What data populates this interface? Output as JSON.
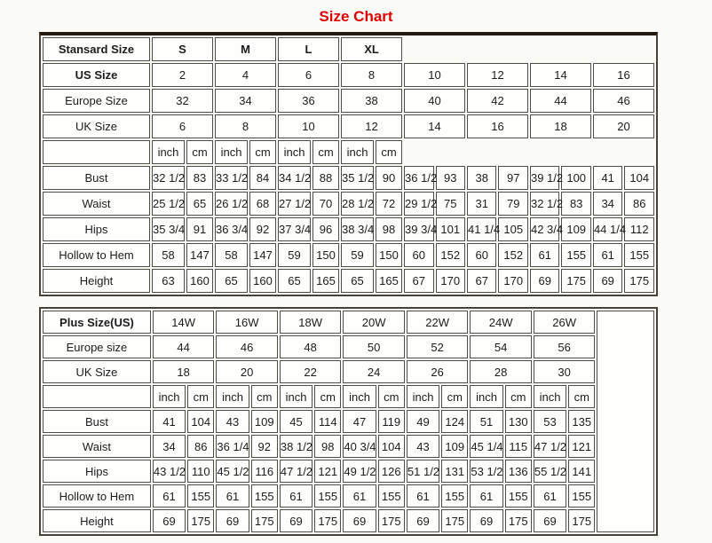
{
  "title": "Size Chart",
  "colors": {
    "title": "#e10000",
    "cell_border": "#4f4b45",
    "table_top_bar": "#241b10",
    "cell_background": "#fefefc",
    "page_background": "#fbfbf8"
  },
  "standard_table": {
    "corner_label": "Stansard Size",
    "groups": [
      "S",
      "M",
      "L",
      "XL"
    ],
    "size_rows": [
      {
        "label": "US Size",
        "values": [
          "2",
          "4",
          "6",
          "8",
          "10",
          "12",
          "14",
          "16"
        ]
      },
      {
        "label": "Europe Size",
        "values": [
          "32",
          "34",
          "36",
          "38",
          "40",
          "42",
          "44",
          "46"
        ]
      },
      {
        "label": "UK Size",
        "values": [
          "6",
          "8",
          "10",
          "12",
          "14",
          "16",
          "18",
          "20"
        ]
      }
    ],
    "unit_labels": [
      "inch",
      "cm"
    ],
    "measure_rows": [
      {
        "label": "Bust",
        "values": [
          "32 1/2",
          "83",
          "33 1/2",
          "84",
          "34 1/2",
          "88",
          "35 1/2",
          "90",
          "36 1/2",
          "93",
          "38",
          "97",
          "39 1/2",
          "100",
          "41",
          "104"
        ]
      },
      {
        "label": "Waist",
        "values": [
          "25 1/2",
          "65",
          "26 1/2",
          "68",
          "27 1/2",
          "70",
          "28 1/2",
          "72",
          "29 1/2",
          "75",
          "31",
          "79",
          "32 1/2",
          "83",
          "34",
          "86"
        ]
      },
      {
        "label": "Hips",
        "values": [
          "35 3/4",
          "91",
          "36 3/4",
          "92",
          "37 3/4",
          "96",
          "38 3/4",
          "98",
          "39 3/4",
          "101",
          "41 1/4",
          "105",
          "42 3/4",
          "109",
          "44 1/4",
          "112"
        ]
      },
      {
        "label": "Hollow to Hem",
        "values": [
          "58",
          "147",
          "58",
          "147",
          "59",
          "150",
          "59",
          "150",
          "60",
          "152",
          "60",
          "152",
          "61",
          "155",
          "61",
          "155"
        ]
      },
      {
        "label": "Height",
        "values": [
          "63",
          "160",
          "65",
          "160",
          "65",
          "165",
          "65",
          "165",
          "67",
          "170",
          "67",
          "170",
          "69",
          "175",
          "69",
          "175"
        ]
      }
    ]
  },
  "plus_table": {
    "corner_label": "Plus Size(US)",
    "groups": [
      "14W",
      "16W",
      "18W",
      "20W",
      "22W",
      "24W",
      "26W"
    ],
    "size_rows": [
      {
        "label": "Europe size",
        "values": [
          "44",
          "46",
          "48",
          "50",
          "52",
          "54",
          "56"
        ]
      },
      {
        "label": "UK Size",
        "values": [
          "18",
          "20",
          "22",
          "24",
          "26",
          "28",
          "30"
        ]
      }
    ],
    "unit_labels": [
      "inch",
      "cm"
    ],
    "measure_rows": [
      {
        "label": "Bust",
        "values": [
          "41",
          "104",
          "43",
          "109",
          "45",
          "114",
          "47",
          "119",
          "49",
          "124",
          "51",
          "130",
          "53",
          "135"
        ]
      },
      {
        "label": "Waist",
        "values": [
          "34",
          "86",
          "36 1/4",
          "92",
          "38 1/2",
          "98",
          "40 3/4",
          "104",
          "43",
          "109",
          "45 1/4",
          "115",
          "47 1/2",
          "121"
        ]
      },
      {
        "label": "Hips",
        "values": [
          "43 1/2",
          "110",
          "45 1/2",
          "116",
          "47 1/2",
          "121",
          "49 1/2",
          "126",
          "51 1/2",
          "131",
          "53 1/2",
          "136",
          "55 1/2",
          "141"
        ]
      },
      {
        "label": "Hollow to Hem",
        "values": [
          "61",
          "155",
          "61",
          "155",
          "61",
          "155",
          "61",
          "155",
          "61",
          "155",
          "61",
          "155",
          "61",
          "155"
        ]
      },
      {
        "label": "Height",
        "values": [
          "69",
          "175",
          "69",
          "175",
          "69",
          "175",
          "69",
          "175",
          "69",
          "175",
          "69",
          "175",
          "69",
          "175"
        ]
      }
    ],
    "has_trailing_empty_column": true
  }
}
